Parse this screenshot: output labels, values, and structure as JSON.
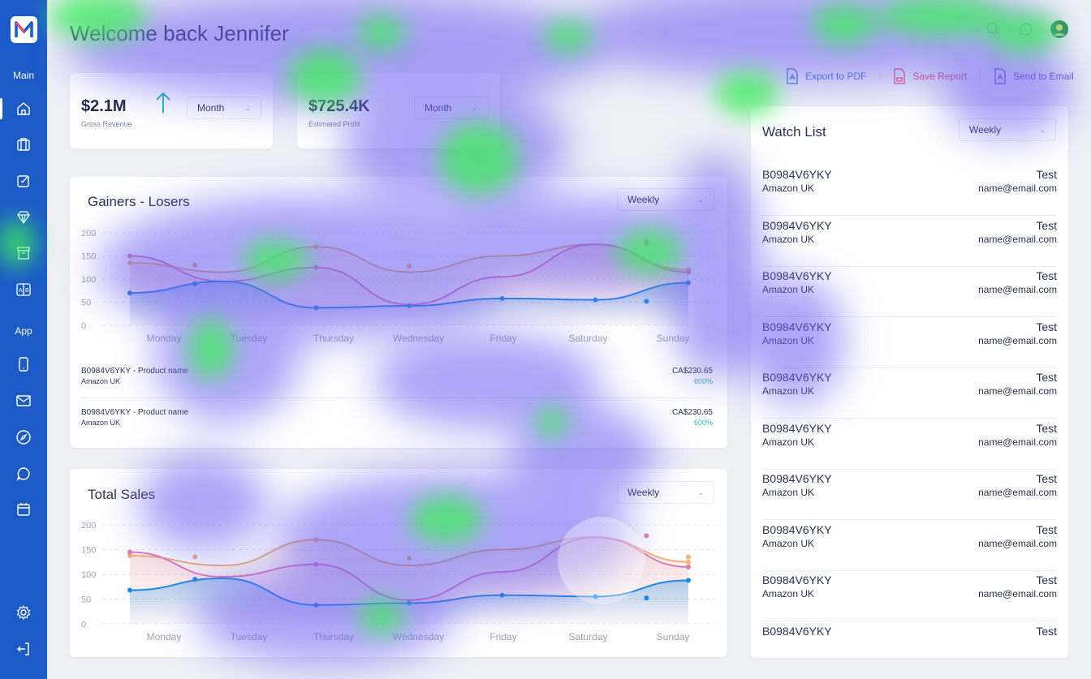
{
  "greeting": "Welcome back Jennifer",
  "sidebar": {
    "sections": [
      "Main",
      "App"
    ],
    "main_icons": [
      "home-icon",
      "briefcase-icon",
      "edit-icon",
      "diamond-icon",
      "archive-icon",
      "translate-icon"
    ],
    "app_icons": [
      "phone-icon",
      "mail-icon",
      "compass-icon",
      "chat-icon",
      "calendar-icon"
    ],
    "bottom_icons": [
      "settings-icon",
      "logout-icon"
    ]
  },
  "header_icons": [
    "search-icon",
    "chat-icon",
    "avatar"
  ],
  "actions": {
    "export_pdf": "Export to PDF",
    "save_report": "Save Report",
    "send_email": "Send to Email"
  },
  "kpis": [
    {
      "value": "$2.1M",
      "label": "Gross Revenue",
      "period": "Month"
    },
    {
      "value": "$725.4K",
      "label": "Estimated Profit",
      "period": "Month"
    }
  ],
  "gainers": {
    "title": "Gainers - Losers",
    "period": "Weekly",
    "rows": [
      {
        "name": "B0984V6YKY - Product name",
        "market": "Amazon UK",
        "price": "CA$230.65",
        "change": "600%"
      },
      {
        "name": "B0984V6YKY - Product name",
        "market": "Amazon UK",
        "price": "CA$230.65",
        "change": "600%"
      }
    ]
  },
  "total_sales": {
    "title": "Total Sales",
    "period": "Weekly"
  },
  "watchlist": {
    "title": "Watch List",
    "period": "Weekly",
    "items": [
      {
        "code": "B0984V6YKY",
        "market": "Amazon UK",
        "name": "Test",
        "email": "name@email.com"
      },
      {
        "code": "B0984V6YKY",
        "market": "Amazon UK",
        "name": "Test",
        "email": "name@email.com"
      },
      {
        "code": "B0984V6YKY",
        "market": "Amazon UK",
        "name": "Test",
        "email": "name@email.com"
      },
      {
        "code": "B0984V6YKY",
        "market": "Amazon UK",
        "name": "Test",
        "email": "name@email.com"
      },
      {
        "code": "B0984V6YKY",
        "market": "Amazon UK",
        "name": "Test",
        "email": "name@email.com"
      },
      {
        "code": "B0984V6YKY",
        "market": "Amazon UK",
        "name": "Test",
        "email": "name@email.com"
      },
      {
        "code": "B0984V6YKY",
        "market": "Amazon UK",
        "name": "Test",
        "email": "name@email.com"
      },
      {
        "code": "B0984V6YKY",
        "market": "Amazon UK",
        "name": "Test",
        "email": "name@email.com"
      },
      {
        "code": "B0984V6YKY",
        "market": "Amazon UK",
        "name": "Test",
        "email": "name@email.com"
      },
      {
        "code": "B0984V6YKY",
        "market": "",
        "name": "Test",
        "email": ""
      }
    ]
  },
  "colors": {
    "sidebar": "#1c5ac8",
    "blue": "#1e88e5",
    "orange": "#f0b070",
    "pink": "#e07ab8",
    "teal": "#2fb6b0",
    "export": "#3d7be8",
    "save": "#e0507a",
    "send": "#6f58e0"
  },
  "chart_data": [
    {
      "type": "area",
      "title": "Gainers - Losers",
      "categories": [
        "Monday",
        "Tuesday",
        "Thursday",
        "Wednesday",
        "Friday",
        "Saturday",
        "Sunday"
      ],
      "yticks": [
        0,
        50,
        100,
        150,
        200
      ],
      "ylim": [
        0,
        200
      ],
      "series": [
        {
          "values": [
            135,
            115,
            170,
            115,
            150,
            175,
            120
          ]
        },
        {
          "values": [
            150,
            95,
            125,
            45,
            105,
            175,
            115
          ]
        },
        {
          "values": [
            70,
            95,
            38,
            42,
            58,
            55,
            92
          ]
        }
      ],
      "points": [
        {
          "series": 0,
          "x": 0.7,
          "y": 130
        },
        {
          "series": 1,
          "x": 5.55,
          "y": 180
        },
        {
          "series": 1,
          "x": 5.55,
          "y": 175
        },
        {
          "series": 0,
          "x": 3.0,
          "y": 128
        },
        {
          "series": 2,
          "x": 0.7,
          "y": 90
        },
        {
          "series": 2,
          "x": 5.55,
          "y": 52
        }
      ]
    },
    {
      "type": "area",
      "title": "Total Sales",
      "categories": [
        "Monday",
        "Tuesday",
        "Thursday",
        "Wednesday",
        "Friday",
        "Saturday",
        "Sunday"
      ],
      "yticks": [
        0,
        50,
        100,
        150,
        200
      ],
      "ylim": [
        0,
        200
      ],
      "series": [
        {
          "values": [
            138,
            118,
            170,
            118,
            150,
            175,
            125
          ]
        },
        {
          "values": [
            145,
            95,
            120,
            48,
            105,
            175,
            115
          ]
        },
        {
          "values": [
            68,
            92,
            38,
            42,
            58,
            55,
            88
          ]
        }
      ],
      "points": [
        {
          "series": 0,
          "x": 0.7,
          "y": 135
        },
        {
          "series": 1,
          "x": 5.55,
          "y": 178
        },
        {
          "series": 0,
          "x": 3.0,
          "y": 132
        },
        {
          "series": 0,
          "x": 6.0,
          "y": 135
        },
        {
          "series": 2,
          "x": 0.7,
          "y": 90
        },
        {
          "series": 2,
          "x": 5.55,
          "y": 52
        }
      ]
    }
  ]
}
